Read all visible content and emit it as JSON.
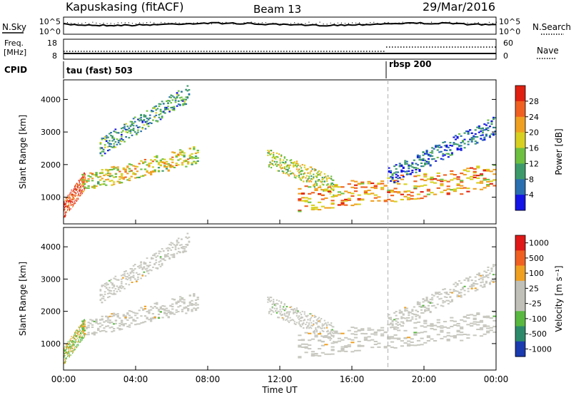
{
  "header": {
    "station": "Kapuskasing (fitACF)",
    "beam": "Beam 13",
    "date": "29/Mar/2016"
  },
  "strip_labels": {
    "nsky": "N.Sky",
    "nsky_ticks": [
      "10^5",
      "10^0"
    ],
    "nsearch": "N.Search",
    "nsearch_ticks": [
      "10^5",
      "10^0"
    ],
    "freq_line1": "Freq.",
    "freq_line2": "[MHz]",
    "freq_ticks": [
      "18",
      "8"
    ],
    "nave": "Nave",
    "nave_ticks": [
      "60",
      "0"
    ],
    "cpid": "CPID",
    "cpid_first": "tau (fast) 503",
    "cpid_second": "rbsp 200"
  },
  "chart_data": [
    {
      "type": "heatmap",
      "name": "power",
      "ylabel": "Slant Range [km]",
      "yticks": [
        "1000",
        "2000",
        "3000",
        "4000"
      ],
      "xlabel": "Time UT",
      "xticks": [
        "00:00",
        "04:00",
        "08:00",
        "12:00",
        "16:00",
        "20:00",
        "00:00"
      ],
      "xlim_hours": [
        0,
        24
      ],
      "ylim_km": [
        180,
        4600
      ],
      "colorbar_label": "Power [dB]",
      "colorbar_ticks": [
        "4",
        "8",
        "12",
        "16",
        "20",
        "24",
        "28"
      ],
      "colorbar_range": [
        0,
        32
      ],
      "colorscale": [
        "#1414e6",
        "#2a6fb0",
        "#3c9a6a",
        "#6dc040",
        "#d8d020",
        "#f0a020",
        "#f06020",
        "#e02010"
      ],
      "features": [
        {
          "desc": "near range band",
          "t0": 0.0,
          "t1": 1.2,
          "r0": 600,
          "r1": 1500,
          "level": 28
        },
        {
          "desc": "rising backscatter band",
          "t0": 1.0,
          "t1": 7.5,
          "r0": 1400,
          "r1": 2300,
          "level": 18
        },
        {
          "desc": "upper patches",
          "t0": 2.0,
          "t1": 7.0,
          "r0": 2500,
          "r1": 4200,
          "level": 10
        },
        {
          "desc": "decaying band",
          "t0": 11.3,
          "t1": 15.0,
          "r0": 2200,
          "r1": 1300,
          "level": 16
        },
        {
          "desc": "main late band",
          "t0": 13.0,
          "t1": 24.0,
          "r0": 900,
          "r1": 1600,
          "level": 22
        },
        {
          "desc": "late diffuse scatter",
          "t0": 18.0,
          "t1": 24.0,
          "r0": 1600,
          "r1": 3200,
          "level": 6
        }
      ]
    },
    {
      "type": "heatmap",
      "name": "velocity",
      "ylabel": "Slant Range [km]",
      "yticks": [
        "1000",
        "2000",
        "3000",
        "4000"
      ],
      "xlabel": "Time UT",
      "xticks": [
        "00:00",
        "04:00",
        "08:00",
        "12:00",
        "16:00",
        "20:00",
        "00:00"
      ],
      "colorbar_label": "Velocity [m s⁻¹]",
      "colorbar_ticks": [
        "1000",
        "500",
        "100",
        "25",
        "-25",
        "-100",
        "-500",
        "-1000"
      ],
      "colorscale": [
        "#1a3ab0",
        "#2c8a6a",
        "#58b840",
        "#c0c0b8",
        "#c0c0b8",
        "#f0a020",
        "#f06020",
        "#e01818"
      ],
      "dominant_color": "#c8c8c0"
    }
  ],
  "marker_time_hours": 18.0
}
